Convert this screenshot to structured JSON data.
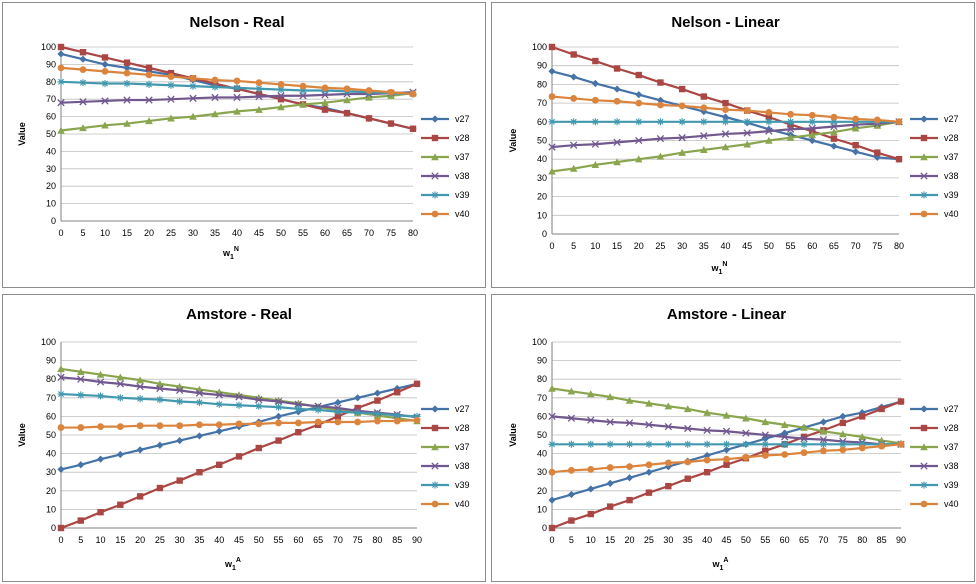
{
  "colors": {
    "v27": "#4572A7",
    "v28": "#AA4643",
    "v37": "#89A54E",
    "v38": "#71588F",
    "v39": "#4198AF",
    "v40": "#DB843D"
  },
  "chart_data": [
    {
      "type": "line",
      "title": "Nelson - Real",
      "xlabel": "w1N",
      "xlabel_base": "w",
      "xlabel_sub": "1",
      "xlabel_sup": "N",
      "ylabel": "Value",
      "ylim": [
        0,
        100
      ],
      "yticks": [
        0,
        10,
        20,
        30,
        40,
        50,
        60,
        70,
        80,
        90,
        100
      ],
      "categories": [
        0,
        5,
        10,
        15,
        20,
        25,
        30,
        35,
        40,
        45,
        50,
        55,
        60,
        65,
        70,
        75,
        80
      ],
      "legend": "right",
      "grid": true,
      "series": [
        {
          "name": "v27",
          "values": [
            96,
            93,
            90,
            88,
            86,
            84,
            81,
            78,
            76,
            73,
            70,
            67,
            65,
            62,
            59,
            56,
            53
          ]
        },
        {
          "name": "v28",
          "values": [
            100,
            97,
            94,
            91,
            88,
            85,
            82,
            79,
            76,
            73,
            70,
            67,
            64,
            62,
            59,
            56,
            53
          ]
        },
        {
          "name": "v37",
          "values": [
            52,
            53.5,
            55,
            56,
            57.5,
            59,
            60,
            61.5,
            63,
            64,
            65.5,
            67,
            68,
            69.5,
            71,
            72,
            73.5
          ]
        },
        {
          "name": "v38",
          "values": [
            68,
            68.5,
            69,
            69.5,
            69.5,
            70,
            70.5,
            71,
            71,
            71.5,
            72,
            72,
            72.5,
            73,
            73,
            73.5,
            74
          ]
        },
        {
          "name": "v39",
          "values": [
            80,
            79.5,
            79,
            79,
            78.5,
            78,
            77.5,
            77,
            76.5,
            76,
            75.5,
            75,
            75,
            74.5,
            74,
            73.5,
            73
          ]
        },
        {
          "name": "v40",
          "values": [
            88,
            87,
            86,
            85,
            84,
            83,
            82,
            81,
            80.5,
            79.5,
            78.5,
            77.5,
            76.5,
            76,
            75,
            74,
            73
          ]
        }
      ]
    },
    {
      "type": "line",
      "title": "Nelson - Linear",
      "xlabel": "w1N",
      "xlabel_base": "w",
      "xlabel_sub": "1",
      "xlabel_sup": "N",
      "ylabel": "Value",
      "ylim": [
        0,
        100
      ],
      "yticks": [
        0,
        10,
        20,
        30,
        40,
        50,
        60,
        70,
        80,
        90,
        100
      ],
      "categories": [
        0,
        5,
        10,
        15,
        20,
        25,
        30,
        35,
        40,
        45,
        50,
        55,
        60,
        65,
        70,
        75,
        80
      ],
      "legend": "right",
      "grid": true,
      "series": [
        {
          "name": "v27",
          "values": [
            87,
            84,
            80.5,
            77.5,
            74.5,
            71.5,
            68.5,
            65.5,
            62.5,
            59.5,
            56,
            53,
            50,
            47,
            44,
            41,
            40
          ]
        },
        {
          "name": "v28",
          "values": [
            100,
            96,
            92.5,
            88.5,
            85,
            81,
            77.5,
            73.5,
            70,
            66,
            62.5,
            58.5,
            55,
            51,
            47.5,
            43.5,
            40
          ]
        },
        {
          "name": "v37",
          "values": [
            33.5,
            35,
            37,
            38.5,
            40,
            41.5,
            43.5,
            45,
            46.5,
            48,
            50,
            51.5,
            53,
            54.5,
            56.5,
            58,
            60
          ]
        },
        {
          "name": "v38",
          "values": [
            46.5,
            47.5,
            48,
            49,
            50,
            51,
            51.5,
            52.5,
            53.5,
            54,
            55,
            56,
            56.5,
            57.5,
            58.5,
            59,
            60
          ]
        },
        {
          "name": "v39",
          "values": [
            60,
            60,
            60,
            60,
            60,
            60,
            60,
            60,
            60,
            60,
            60,
            60,
            60,
            60,
            60,
            60,
            60
          ]
        },
        {
          "name": "v40",
          "values": [
            73.5,
            72.5,
            71.5,
            71,
            70,
            69,
            68.5,
            67.5,
            66.5,
            66,
            65,
            64,
            63.5,
            62.5,
            61.5,
            61,
            60
          ]
        }
      ]
    },
    {
      "type": "line",
      "title": "Amstore - Real",
      "xlabel": "w1A",
      "xlabel_base": "w",
      "xlabel_sub": "1",
      "xlabel_sup": "A",
      "ylabel": "Value",
      "ylim": [
        0,
        100
      ],
      "yticks": [
        0,
        10,
        20,
        30,
        40,
        50,
        60,
        70,
        80,
        90,
        100
      ],
      "categories": [
        0,
        5,
        10,
        15,
        20,
        25,
        30,
        35,
        40,
        45,
        50,
        55,
        60,
        65,
        70,
        75,
        80,
        85,
        90
      ],
      "legend": "right",
      "grid": true,
      "series": [
        {
          "name": "v27",
          "values": [
            31.5,
            34,
            37,
            39.5,
            42,
            44.5,
            47,
            49.5,
            52,
            54.5,
            57,
            60,
            62.5,
            65,
            67.5,
            70,
            72.5,
            75,
            77.5
          ]
        },
        {
          "name": "v28",
          "values": [
            0,
            4,
            8.5,
            12.5,
            17,
            21.5,
            25.5,
            30,
            34,
            38.5,
            43,
            47,
            51.5,
            55.5,
            60,
            64.5,
            68.5,
            73,
            77.5
          ]
        },
        {
          "name": "v37",
          "values": [
            85.5,
            84,
            82.5,
            81,
            79.5,
            77.5,
            76,
            74.5,
            73,
            71.5,
            70,
            68.5,
            67,
            65,
            63.5,
            62,
            60.5,
            59,
            57.5
          ]
        },
        {
          "name": "v38",
          "values": [
            81,
            80,
            78.5,
            77.5,
            76,
            75,
            74,
            72.5,
            71.5,
            70.5,
            69,
            68,
            66.5,
            65.5,
            64.5,
            63,
            62,
            61,
            59.5
          ]
        },
        {
          "name": "v39",
          "values": [
            72,
            71.5,
            71,
            70,
            69.5,
            69,
            68,
            67.5,
            66.5,
            66,
            65.5,
            65,
            64,
            63.5,
            62.5,
            62,
            61.5,
            60.5,
            60
          ]
        },
        {
          "name": "v40",
          "values": [
            54,
            54,
            54.5,
            54.5,
            55,
            55,
            55,
            55.5,
            55.5,
            56,
            56,
            56.5,
            56.5,
            57,
            57,
            57,
            57.5,
            57.5,
            58
          ]
        }
      ]
    },
    {
      "type": "line",
      "title": "Amstore - Linear",
      "xlabel": "w1A",
      "xlabel_base": "w",
      "xlabel_sub": "1",
      "xlabel_sup": "A",
      "ylabel": "Value",
      "ylim": [
        0,
        100
      ],
      "yticks": [
        0,
        10,
        20,
        30,
        40,
        50,
        60,
        70,
        80,
        90,
        100
      ],
      "categories": [
        0,
        5,
        10,
        15,
        20,
        25,
        30,
        35,
        40,
        45,
        50,
        55,
        60,
        65,
        70,
        75,
        80,
        85,
        90
      ],
      "legend": "right",
      "grid": true,
      "series": [
        {
          "name": "v27",
          "values": [
            15,
            18,
            21,
            24,
            27,
            30,
            33,
            36,
            39,
            42,
            45,
            48,
            51,
            54,
            57,
            60,
            62,
            65,
            68
          ]
        },
        {
          "name": "v28",
          "values": [
            0,
            4,
            7.5,
            11.5,
            15,
            19,
            22.5,
            26.5,
            30,
            34,
            37.5,
            41.5,
            45,
            49,
            52.5,
            56.5,
            60,
            64,
            68
          ]
        },
        {
          "name": "v37",
          "values": [
            75,
            73.5,
            72,
            70.5,
            68.5,
            67,
            65.5,
            64,
            62,
            60.5,
            59,
            57,
            55.5,
            54,
            52,
            50.5,
            49,
            47,
            45.5
          ]
        },
        {
          "name": "v38",
          "values": [
            60,
            59,
            58,
            57,
            56.5,
            55.5,
            54.5,
            53.5,
            52.5,
            52,
            51,
            50,
            49,
            48,
            47.5,
            46.5,
            46,
            45,
            45
          ]
        },
        {
          "name": "v39",
          "values": [
            45,
            45,
            45,
            45,
            45,
            45,
            45,
            45,
            45,
            45,
            45,
            45,
            45,
            45,
            45,
            45,
            45,
            45,
            45
          ]
        },
        {
          "name": "v40",
          "values": [
            30,
            31,
            31.5,
            32.5,
            33,
            34,
            35,
            35.5,
            36.5,
            37,
            38,
            39,
            39.5,
            40.5,
            41.5,
            42,
            43,
            44,
            45
          ]
        }
      ]
    }
  ]
}
